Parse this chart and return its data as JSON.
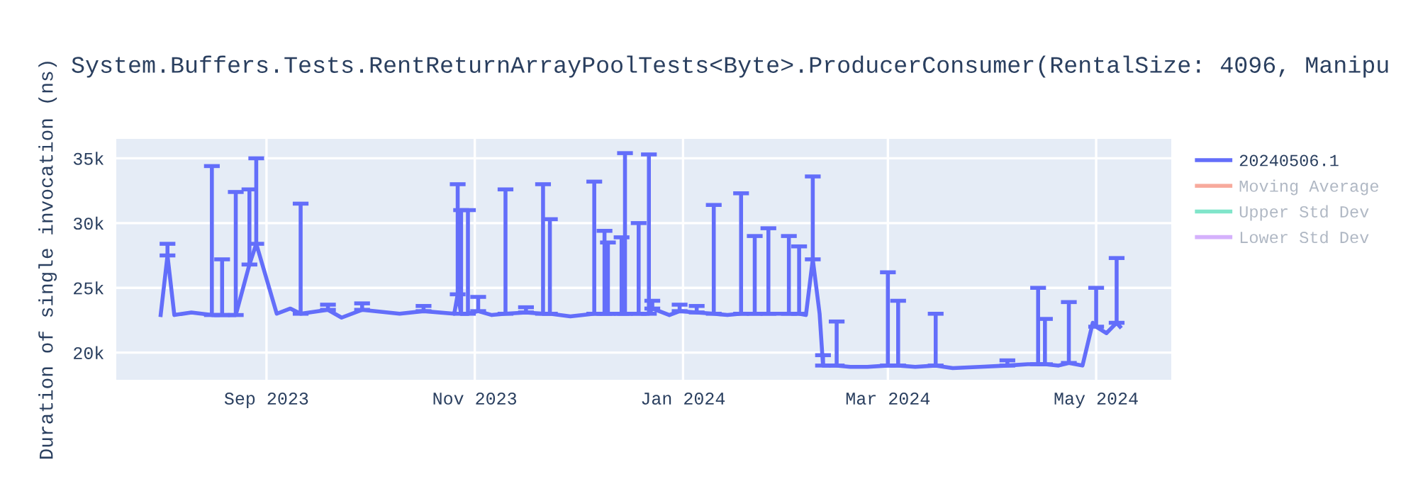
{
  "chart_data": {
    "type": "line",
    "title": "System.Buffers.Tests.RentReturnArrayPoolTests<Byte>.ProducerConsumer(RentalSize: 4096, Manipu",
    "ylabel": "Duration of single invocation (ns)",
    "x": [
      "2023-08-01",
      "2023-08-03",
      "2023-08-05",
      "2023-08-10",
      "2023-08-16",
      "2023-08-19",
      "2023-08-23",
      "2023-08-27",
      "2023-08-29",
      "2023-09-04",
      "2023-09-08",
      "2023-09-11",
      "2023-09-19",
      "2023-09-23",
      "2023-09-29",
      "2023-10-10",
      "2023-10-17",
      "2023-10-26",
      "2023-10-27",
      "2023-10-28",
      "2023-10-30",
      "2023-11-02",
      "2023-11-06",
      "2023-11-10",
      "2023-11-16",
      "2023-11-21",
      "2023-11-23",
      "2023-11-29",
      "2023-12-06",
      "2023-12-09",
      "2023-12-10",
      "2023-12-14",
      "2023-12-15",
      "2023-12-19",
      "2023-12-22",
      "2023-12-23",
      "2023-12-28",
      "2023-12-31",
      "2024-01-05",
      "2024-01-10",
      "2024-01-14",
      "2024-01-18",
      "2024-01-22",
      "2024-01-26",
      "2024-02-01",
      "2024-02-04",
      "2024-02-06",
      "2024-02-08",
      "2024-02-10",
      "2024-02-11",
      "2024-02-15",
      "2024-02-19",
      "2024-02-24",
      "2024-03-01",
      "2024-03-04",
      "2024-03-09",
      "2024-03-15",
      "2024-03-20",
      "2024-03-28",
      "2024-04-05",
      "2024-04-11",
      "2024-04-14",
      "2024-04-16",
      "2024-04-20",
      "2024-04-23",
      "2024-04-27",
      "2024-04-30",
      "2024-05-01",
      "2024-05-04",
      "2024-05-07",
      "2024-05-08"
    ],
    "series": [
      {
        "name": "20240506.1",
        "color": "#636efa",
        "values": [
          22900,
          27500,
          22900,
          23100,
          22900,
          22900,
          22900,
          26800,
          28400,
          23000,
          23400,
          23000,
          23300,
          22700,
          23300,
          23000,
          23200,
          23000,
          24500,
          23000,
          23000,
          23200,
          22900,
          23000,
          23100,
          23000,
          23000,
          22800,
          23000,
          23000,
          23000,
          23000,
          23000,
          23000,
          23000,
          23400,
          22900,
          23200,
          23100,
          23000,
          22900,
          23000,
          23000,
          23000,
          23000,
          23000,
          22900,
          27200,
          23000,
          19000,
          19000,
          18900,
          18900,
          19000,
          19000,
          18900,
          19000,
          18800,
          18900,
          19000,
          19100,
          19100,
          19100,
          19000,
          19200,
          19000,
          22300,
          22000,
          21500,
          22300,
          22000
        ],
        "errors": [
          null,
          [
            27500,
            28400
          ],
          null,
          null,
          [
            22900,
            34400
          ],
          [
            22900,
            27200
          ],
          [
            22900,
            32400
          ],
          [
            26800,
            32600
          ],
          [
            28400,
            35000
          ],
          null,
          null,
          [
            23000,
            31500
          ],
          [
            23300,
            23700
          ],
          null,
          [
            23300,
            23800
          ],
          null,
          [
            23200,
            23600
          ],
          null,
          [
            24500,
            33000
          ],
          [
            23000,
            31000
          ],
          [
            23000,
            31000
          ],
          [
            23200,
            24300
          ],
          null,
          [
            23000,
            32600
          ],
          [
            23100,
            23500
          ],
          [
            23000,
            33000
          ],
          [
            23000,
            30300
          ],
          null,
          [
            23000,
            33200
          ],
          [
            23000,
            29400
          ],
          [
            23000,
            28500
          ],
          [
            23000,
            28900
          ],
          [
            23000,
            35400
          ],
          [
            23000,
            30000
          ],
          [
            23000,
            35300
          ],
          [
            23400,
            24000
          ],
          null,
          [
            23200,
            23700
          ],
          [
            23100,
            23600
          ],
          [
            23000,
            31400
          ],
          null,
          [
            23000,
            32300
          ],
          [
            23000,
            29000
          ],
          [
            23000,
            29600
          ],
          [
            23000,
            29000
          ],
          [
            23000,
            28200
          ],
          null,
          [
            27200,
            33600
          ],
          null,
          [
            19000,
            19800
          ],
          [
            19000,
            22400
          ],
          null,
          null,
          [
            19000,
            26200
          ],
          [
            19000,
            24000
          ],
          null,
          [
            19000,
            23000
          ],
          null,
          null,
          [
            19000,
            19400
          ],
          null,
          [
            19100,
            25000
          ],
          [
            19100,
            22600
          ],
          null,
          [
            19200,
            23900
          ],
          null,
          null,
          [
            22000,
            25000
          ],
          null,
          [
            22300,
            27300
          ],
          null
        ]
      },
      {
        "name": "Moving Average",
        "color": "#f7aa9d",
        "values": [
          null,
          null,
          null,
          null,
          null,
          null,
          null,
          null,
          null,
          null,
          null,
          null,
          null,
          null,
          null,
          null,
          null,
          null,
          null,
          null,
          null,
          null,
          null,
          null,
          null,
          null,
          null,
          null,
          null,
          null,
          null,
          null,
          null,
          null,
          null,
          null,
          null,
          null,
          null,
          null,
          null,
          null,
          null,
          null,
          null,
          null,
          null,
          null,
          null,
          null,
          null,
          null,
          null,
          null,
          null,
          null,
          null,
          null,
          null,
          null,
          null,
          null,
          null,
          null,
          null,
          null,
          null,
          null,
          null,
          null,
          null
        ]
      },
      {
        "name": "Upper Std Dev",
        "color": "#80e5ca",
        "values": [
          null,
          null,
          null,
          null,
          null,
          null,
          null,
          null,
          null,
          null,
          null,
          null,
          null,
          null,
          null,
          null,
          null,
          null,
          null,
          null,
          null,
          null,
          null,
          null,
          null,
          null,
          null,
          null,
          null,
          null,
          null,
          null,
          null,
          null,
          null,
          null,
          null,
          null,
          null,
          null,
          null,
          null,
          null,
          null,
          null,
          null,
          null,
          null,
          null,
          null,
          null,
          null,
          null,
          null,
          null,
          null,
          null,
          null,
          null,
          null,
          null,
          null,
          null,
          null,
          null,
          null,
          null,
          null,
          null,
          null,
          null
        ]
      },
      {
        "name": "Lower Std Dev",
        "color": "#d5b1fc",
        "values": [
          null,
          null,
          null,
          null,
          null,
          null,
          null,
          null,
          null,
          null,
          null,
          null,
          null,
          null,
          null,
          null,
          null,
          null,
          null,
          null,
          null,
          null,
          null,
          null,
          null,
          null,
          null,
          null,
          null,
          null,
          null,
          null,
          null,
          null,
          null,
          null,
          null,
          null,
          null,
          null,
          null,
          null,
          null,
          null,
          null,
          null,
          null,
          null,
          null,
          null,
          null,
          null,
          null,
          null,
          null,
          null,
          null,
          null,
          null,
          null,
          null,
          null,
          null,
          null,
          null,
          null,
          null,
          null,
          null,
          null,
          null
        ]
      }
    ],
    "xlim": [
      "2023-07-19",
      "2024-05-23"
    ],
    "xticks": [
      {
        "value": "2023-09-01",
        "label": "Sep 2023"
      },
      {
        "value": "2023-11-01",
        "label": "Nov 2023"
      },
      {
        "value": "2024-01-01",
        "label": "Jan 2024"
      },
      {
        "value": "2024-03-01",
        "label": "Mar 2024"
      },
      {
        "value": "2024-05-01",
        "label": "May 2024"
      }
    ],
    "ylim": [
      17900,
      36500
    ],
    "yticks": [
      {
        "value": 20000,
        "label": "20k"
      },
      {
        "value": 25000,
        "label": "25k"
      },
      {
        "value": 30000,
        "label": "30k"
      },
      {
        "value": 35000,
        "label": "35k"
      }
    ],
    "grid": true,
    "legend": "right",
    "marker": "none",
    "line_style": "solid"
  }
}
